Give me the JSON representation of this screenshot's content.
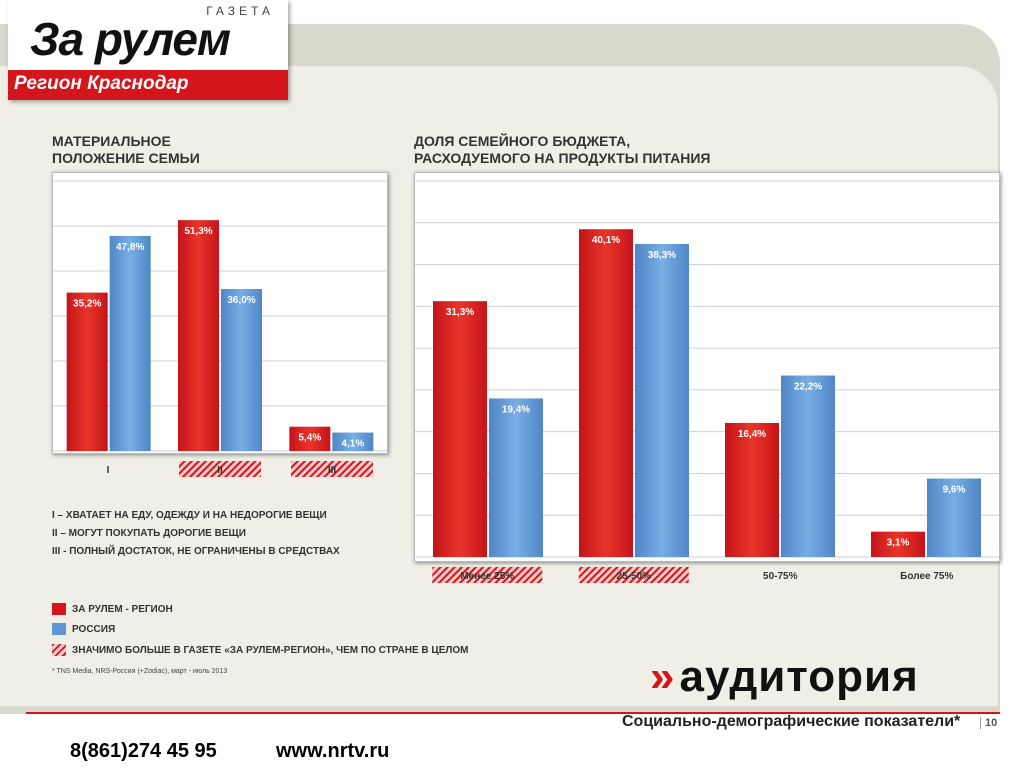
{
  "logo": {
    "gazeta": "ГАЗЕТА",
    "name": "За рулем",
    "region": "Регион Краснодар"
  },
  "chart_data": [
    {
      "type": "bar",
      "title": "МАТЕРИАЛЬНОЕ\nПОЛОЖЕНИЕ СЕМЬИ",
      "categories": [
        "I",
        "II",
        "III"
      ],
      "highlighted": [
        false,
        true,
        true
      ],
      "series": [
        {
          "name": "ЗА РУЛЕМ - РЕГИОН",
          "values": [
            35.2,
            51.3,
            5.4
          ],
          "labels": [
            "35,2%",
            "51,3%",
            "5,4%"
          ],
          "color": "#d4161c"
        },
        {
          "name": "РОССИЯ",
          "values": [
            47.8,
            36.0,
            4.1
          ],
          "labels": [
            "47,8%",
            "36,0%",
            "4,1%"
          ],
          "color": "#5f97d6"
        }
      ],
      "ylim": [
        0,
        60
      ],
      "grid": true
    },
    {
      "type": "bar",
      "title": "ДОЛЯ СЕМЕЙНОГО БЮДЖЕТА,\nРАСХОДУЕМОГО НА ПРОДУКТЫ ПИТАНИЯ",
      "categories": [
        "Менее 25%",
        "25-50%",
        "50-75%",
        "Более 75%"
      ],
      "highlighted": [
        true,
        true,
        false,
        false
      ],
      "series": [
        {
          "name": "ЗА РУЛЕМ - РЕГИОН",
          "values": [
            31.3,
            40.1,
            16.4,
            3.1
          ],
          "labels": [
            "31,3%",
            "40,1%",
            "16,4%",
            "3,1%"
          ],
          "color": "#d4161c"
        },
        {
          "name": "РОССИЯ",
          "values": [
            19.4,
            38.3,
            22.2,
            9.6
          ],
          "labels": [
            "19,4%",
            "38,3%",
            "22,2%",
            "9,6%"
          ],
          "color": "#5f97d6"
        }
      ],
      "ylim": [
        0,
        46
      ],
      "grid": true
    }
  ],
  "notes": [
    "I – ХВАТАЕТ НА ЕДУ, ОДЕЖДУ И НА НЕДОРОГИЕ ВЕЩИ",
    "II – МОГУТ ПОКУПАТЬ ДОРОГИЕ ВЕЩИ",
    "III - ПОЛНЫЙ ДОСТАТОК, НЕ ОГРАНИЧЕНЫ В СРЕДСТВАХ"
  ],
  "legend": {
    "red": "ЗА РУЛЕМ - РЕГИОН",
    "blue": "РОССИЯ",
    "hatch": "ЗНАЧИМО БОЛЬШЕ В ГАЗЕТЕ «ЗА РУЛЕМ-РЕГИОН», ЧЕМ ПО СТРАНЕ В ЦЕЛОМ"
  },
  "footnote": "* TNS Media, NRS-Россия (+Zodiac), март - июль 2013",
  "brand": {
    "chevron": "»",
    "name": "аудитория"
  },
  "subtitle": "Социально-демографические показатели*",
  "page_number": "10",
  "contacts": {
    "phone": "8(861)274 45 95",
    "site": "www.nrtv.ru"
  }
}
